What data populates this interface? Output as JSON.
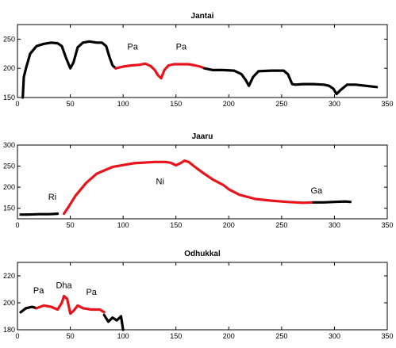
{
  "chart_data": [
    {
      "type": "line",
      "title": "Jantai",
      "xlabel": "",
      "ylabel": "",
      "xlim": [
        0,
        350
      ],
      "ylim": [
        150,
        275
      ],
      "xticks": [
        0,
        50,
        100,
        150,
        200,
        250,
        300,
        350
      ],
      "yticks": [
        150,
        200,
        250
      ],
      "grid": false,
      "series": [
        {
          "color": "#000000",
          "x": [
            5,
            6,
            8,
            12,
            18,
            25,
            32,
            38,
            42,
            46,
            50,
            53,
            57,
            62,
            68,
            75,
            80,
            84,
            87,
            90,
            93
          ],
          "y": [
            150,
            185,
            200,
            225,
            238,
            242,
            244,
            243,
            238,
            218,
            200,
            210,
            236,
            244,
            246,
            244,
            244,
            238,
            220,
            205,
            200
          ]
        },
        {
          "color": "#e8141c",
          "x": [
            93,
            100,
            108,
            115,
            121,
            126,
            130,
            133,
            136,
            139,
            143,
            148,
            155,
            162,
            168,
            173,
            177
          ],
          "y": [
            200,
            203,
            205,
            206,
            208,
            204,
            197,
            188,
            183,
            197,
            205,
            207,
            207,
            207,
            205,
            203,
            200
          ]
        },
        {
          "color": "#000000",
          "x": [
            177,
            185,
            195,
            205,
            212,
            216,
            219,
            223,
            228,
            240,
            252,
            256,
            260,
            263,
            270,
            280,
            290,
            295,
            299,
            302,
            306,
            312,
            320,
            330,
            340
          ],
          "y": [
            200,
            197,
            197,
            196,
            190,
            180,
            170,
            185,
            195,
            196,
            196,
            190,
            173,
            172,
            173,
            173,
            172,
            170,
            165,
            156,
            163,
            172,
            172,
            170,
            168
          ]
        }
      ],
      "annotations": [
        {
          "text": "Pa",
          "x": 109,
          "y": 232
        },
        {
          "text": "Pa",
          "x": 155,
          "y": 232
        }
      ]
    },
    {
      "type": "line",
      "title": "Jaaru",
      "xlabel": "",
      "ylabel": "",
      "xlim": [
        0,
        350
      ],
      "ylim": [
        125,
        300
      ],
      "xticks": [
        0,
        50,
        100,
        150,
        200,
        250,
        300,
        350
      ],
      "yticks": [
        150,
        200,
        250,
        300
      ],
      "grid": false,
      "series": [
        {
          "color": "#000000",
          "x": [
            3,
            10,
            20,
            30,
            38
          ],
          "y": [
            135,
            135,
            136,
            136,
            137
          ]
        },
        {
          "color": "#e8141c",
          "x": [
            44,
            48,
            55,
            65,
            75,
            90,
            110,
            130,
            140,
            145,
            150,
            155,
            158,
            162,
            168,
            175,
            185,
            195,
            200,
            210,
            225,
            240,
            255,
            270,
            280
          ],
          "y": [
            137,
            152,
            180,
            210,
            232,
            248,
            257,
            260,
            260,
            258,
            252,
            258,
            263,
            260,
            248,
            235,
            218,
            205,
            195,
            182,
            172,
            168,
            165,
            163,
            164
          ]
        },
        {
          "color": "#000000",
          "x": [
            280,
            290,
            300,
            310,
            315
          ],
          "y": [
            164,
            164,
            165,
            166,
            165
          ]
        }
      ],
      "annotations": [
        {
          "text": "Ri",
          "x": 33,
          "y": 170
        },
        {
          "text": "Ni",
          "x": 135,
          "y": 207
        },
        {
          "text": "Ga",
          "x": 283,
          "y": 185
        }
      ]
    },
    {
      "type": "line",
      "title": "Odhukkal",
      "xlabel": "",
      "ylabel": "",
      "xlim": [
        0,
        350
      ],
      "ylim": [
        180,
        230
      ],
      "xticks": [
        0,
        50,
        100,
        150,
        200,
        250,
        300,
        350
      ],
      "yticks": [
        180,
        200,
        220
      ],
      "grid": false,
      "series": [
        {
          "color": "#000000",
          "x": [
            3,
            8,
            14,
            18
          ],
          "y": [
            193,
            196,
            197,
            196
          ]
        },
        {
          "color": "#e8141c",
          "x": [
            18,
            25,
            32,
            38,
            42,
            44,
            47,
            50,
            53,
            57,
            62,
            70,
            78,
            82
          ],
          "y": [
            196,
            198,
            197,
            195,
            200,
            205,
            203,
            192,
            194,
            198,
            196,
            195,
            195,
            193
          ]
        },
        {
          "color": "#000000",
          "x": [
            82,
            86,
            90,
            94,
            98,
            100
          ],
          "y": [
            191,
            186,
            189,
            187,
            190,
            180
          ]
        }
      ],
      "annotations": [
        {
          "text": "Pa",
          "x": 20,
          "y": 207
        },
        {
          "text": "Dha",
          "x": 44,
          "y": 211
        },
        {
          "text": "Pa",
          "x": 70,
          "y": 206
        }
      ]
    }
  ]
}
